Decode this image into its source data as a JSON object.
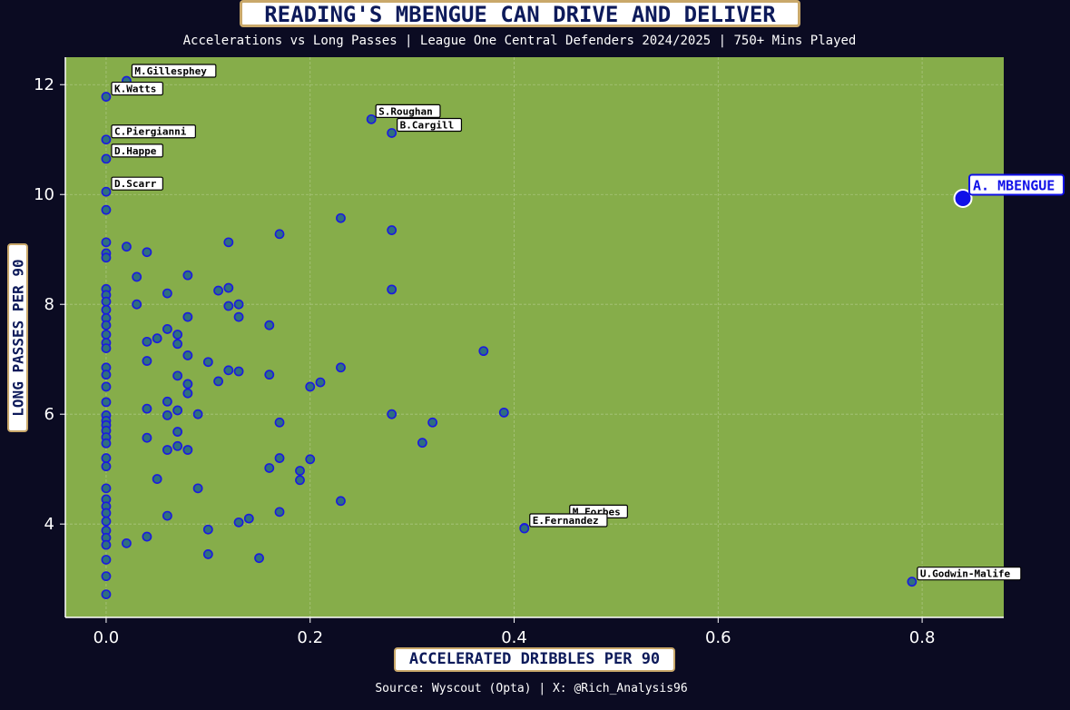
{
  "title": "READING'S MBENGUE CAN DRIVE AND DELIVER",
  "subtitle": "Accelerations vs Long Passes | League One Central Defenders 2024/2025 | 750+ Mins Played",
  "source": "Source: Wyscout (Opta) | X: @Rich_Analysis96",
  "colors": {
    "background": "#0b0b22",
    "plot_area": "#86ad4a",
    "point_fill": "#2f6f7f",
    "point_edge": "#1a1ae0",
    "highlight": "#1010e8",
    "label_text": "#0d1a5a",
    "label_border": "#c9a86a"
  },
  "chart_data": {
    "type": "scatter",
    "title": "READING'S MBENGUE CAN DRIVE AND DELIVER",
    "subtitle": "Accelerations vs Long Passes | League One Central Defenders 2024/2025 | 750+ Mins Played",
    "xlabel": "ACCELERATED DRIBBLES PER 90",
    "ylabel": "LONG PASSES PER 90",
    "xlim": [
      -0.04,
      0.88
    ],
    "ylim": [
      2.3,
      12.5
    ],
    "x_ticks": [
      "0.0",
      "0.2",
      "0.4",
      "0.6",
      "0.8"
    ],
    "x_tick_values": [
      0.0,
      0.2,
      0.4,
      0.6,
      0.8
    ],
    "y_ticks": [
      "4",
      "6",
      "8",
      "10",
      "12"
    ],
    "y_tick_values": [
      4,
      6,
      8,
      10,
      12
    ],
    "grid": true,
    "highlight": {
      "name": "A. MBENGUE",
      "x": 0.84,
      "y": 9.93
    },
    "labeled_points": [
      {
        "name": "M.Gillesphey",
        "x": 0.02,
        "y": 12.07
      },
      {
        "name": "K.Watts",
        "x": 0.0,
        "y": 11.78
      },
      {
        "name": "C.Piergianni",
        "x": 0.0,
        "y": 11.0
      },
      {
        "name": "D.Happe",
        "x": 0.0,
        "y": 10.65
      },
      {
        "name": "D.Scarr",
        "x": 0.0,
        "y": 10.05
      },
      {
        "name": "S.Roughan",
        "x": 0.26,
        "y": 11.37
      },
      {
        "name": "B.Cargill",
        "x": 0.28,
        "y": 11.12
      },
      {
        "name": "M.Forbes",
        "x": 0.41,
        "y": 3.93
      },
      {
        "name": "E.Fernandez",
        "x": 0.41,
        "y": 3.92
      },
      {
        "name": "U.Godwin-Malife",
        "x": 0.79,
        "y": 2.95
      }
    ],
    "points": [
      {
        "x": 0.0,
        "y": 9.72
      },
      {
        "x": 0.0,
        "y": 9.13
      },
      {
        "x": 0.0,
        "y": 8.93
      },
      {
        "x": 0.0,
        "y": 8.85
      },
      {
        "x": 0.0,
        "y": 8.28
      },
      {
        "x": 0.0,
        "y": 8.17
      },
      {
        "x": 0.0,
        "y": 8.05
      },
      {
        "x": 0.0,
        "y": 7.9
      },
      {
        "x": 0.0,
        "y": 7.75
      },
      {
        "x": 0.0,
        "y": 7.62
      },
      {
        "x": 0.0,
        "y": 7.45
      },
      {
        "x": 0.0,
        "y": 7.3
      },
      {
        "x": 0.0,
        "y": 7.2
      },
      {
        "x": 0.0,
        "y": 6.85
      },
      {
        "x": 0.0,
        "y": 6.72
      },
      {
        "x": 0.0,
        "y": 6.5
      },
      {
        "x": 0.0,
        "y": 6.22
      },
      {
        "x": 0.0,
        "y": 5.98
      },
      {
        "x": 0.0,
        "y": 5.88
      },
      {
        "x": 0.0,
        "y": 5.8
      },
      {
        "x": 0.0,
        "y": 5.7
      },
      {
        "x": 0.0,
        "y": 5.58
      },
      {
        "x": 0.0,
        "y": 5.47
      },
      {
        "x": 0.0,
        "y": 5.2
      },
      {
        "x": 0.0,
        "y": 5.05
      },
      {
        "x": 0.0,
        "y": 4.65
      },
      {
        "x": 0.0,
        "y": 4.45
      },
      {
        "x": 0.0,
        "y": 4.32
      },
      {
        "x": 0.0,
        "y": 4.2
      },
      {
        "x": 0.0,
        "y": 4.05
      },
      {
        "x": 0.0,
        "y": 3.88
      },
      {
        "x": 0.0,
        "y": 3.75
      },
      {
        "x": 0.0,
        "y": 3.62
      },
      {
        "x": 0.0,
        "y": 3.35
      },
      {
        "x": 0.0,
        "y": 3.05
      },
      {
        "x": 0.0,
        "y": 2.72
      },
      {
        "x": 0.02,
        "y": 9.05
      },
      {
        "x": 0.02,
        "y": 3.65
      },
      {
        "x": 0.03,
        "y": 8.5
      },
      {
        "x": 0.03,
        "y": 8.0
      },
      {
        "x": 0.04,
        "y": 8.95
      },
      {
        "x": 0.04,
        "y": 7.32
      },
      {
        "x": 0.04,
        "y": 6.97
      },
      {
        "x": 0.04,
        "y": 6.1
      },
      {
        "x": 0.04,
        "y": 5.57
      },
      {
        "x": 0.04,
        "y": 3.77
      },
      {
        "x": 0.05,
        "y": 7.38
      },
      {
        "x": 0.05,
        "y": 4.82
      },
      {
        "x": 0.06,
        "y": 8.2
      },
      {
        "x": 0.06,
        "y": 7.55
      },
      {
        "x": 0.06,
        "y": 6.23
      },
      {
        "x": 0.06,
        "y": 5.98
      },
      {
        "x": 0.06,
        "y": 5.35
      },
      {
        "x": 0.06,
        "y": 4.15
      },
      {
        "x": 0.07,
        "y": 7.45
      },
      {
        "x": 0.07,
        "y": 7.28
      },
      {
        "x": 0.07,
        "y": 6.7
      },
      {
        "x": 0.07,
        "y": 6.07
      },
      {
        "x": 0.07,
        "y": 5.68
      },
      {
        "x": 0.07,
        "y": 5.42
      },
      {
        "x": 0.08,
        "y": 8.53
      },
      {
        "x": 0.08,
        "y": 7.77
      },
      {
        "x": 0.08,
        "y": 7.07
      },
      {
        "x": 0.08,
        "y": 6.55
      },
      {
        "x": 0.08,
        "y": 6.38
      },
      {
        "x": 0.08,
        "y": 5.35
      },
      {
        "x": 0.09,
        "y": 6.0
      },
      {
        "x": 0.09,
        "y": 4.65
      },
      {
        "x": 0.1,
        "y": 6.95
      },
      {
        "x": 0.1,
        "y": 3.9
      },
      {
        "x": 0.1,
        "y": 3.45
      },
      {
        "x": 0.11,
        "y": 8.25
      },
      {
        "x": 0.11,
        "y": 6.6
      },
      {
        "x": 0.12,
        "y": 9.13
      },
      {
        "x": 0.12,
        "y": 8.3
      },
      {
        "x": 0.12,
        "y": 7.97
      },
      {
        "x": 0.12,
        "y": 6.8
      },
      {
        "x": 0.13,
        "y": 8.0
      },
      {
        "x": 0.13,
        "y": 7.77
      },
      {
        "x": 0.13,
        "y": 6.78
      },
      {
        "x": 0.13,
        "y": 4.03
      },
      {
        "x": 0.14,
        "y": 4.1
      },
      {
        "x": 0.15,
        "y": 3.38
      },
      {
        "x": 0.16,
        "y": 7.62
      },
      {
        "x": 0.16,
        "y": 6.72
      },
      {
        "x": 0.16,
        "y": 5.02
      },
      {
        "x": 0.17,
        "y": 9.28
      },
      {
        "x": 0.17,
        "y": 5.85
      },
      {
        "x": 0.17,
        "y": 5.2
      },
      {
        "x": 0.17,
        "y": 4.22
      },
      {
        "x": 0.19,
        "y": 4.97
      },
      {
        "x": 0.19,
        "y": 4.8
      },
      {
        "x": 0.2,
        "y": 6.5
      },
      {
        "x": 0.2,
        "y": 5.18
      },
      {
        "x": 0.21,
        "y": 6.58
      },
      {
        "x": 0.23,
        "y": 9.57
      },
      {
        "x": 0.23,
        "y": 6.85
      },
      {
        "x": 0.23,
        "y": 4.42
      },
      {
        "x": 0.28,
        "y": 9.35
      },
      {
        "x": 0.28,
        "y": 8.27
      },
      {
        "x": 0.28,
        "y": 6.0
      },
      {
        "x": 0.31,
        "y": 5.48
      },
      {
        "x": 0.32,
        "y": 5.85
      },
      {
        "x": 0.37,
        "y": 7.15
      },
      {
        "x": 0.39,
        "y": 6.03
      }
    ]
  }
}
